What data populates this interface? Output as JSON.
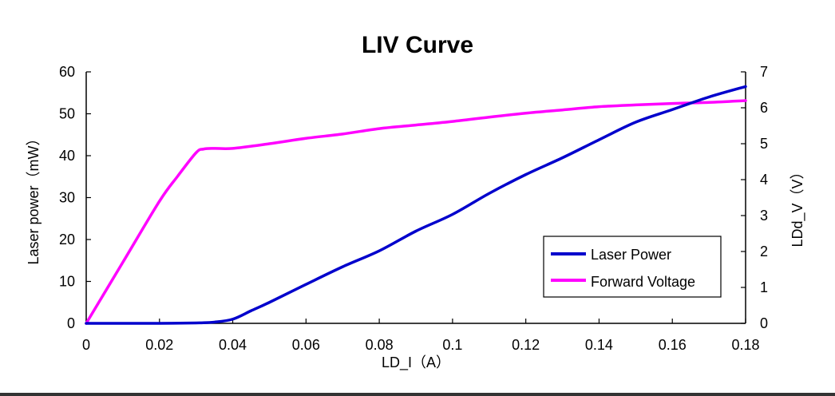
{
  "chart_data": {
    "type": "line",
    "title": "LIV Curve",
    "xlabel": "LD_I（A）",
    "ylabel_left": "Laser power（mW）",
    "ylabel_right": "LDd_V（V）",
    "xlim": [
      0,
      0.18
    ],
    "ylim_left": [
      0,
      60
    ],
    "ylim_right": [
      0,
      7
    ],
    "x_ticks": [
      "0",
      "0.02",
      "0.04",
      "0.06",
      "0.08",
      "0.1",
      "0.12",
      "0.14",
      "0.16",
      "0.18"
    ],
    "y_left_ticks": [
      "0",
      "10",
      "20",
      "30",
      "40",
      "50",
      "60"
    ],
    "y_right_ticks": [
      "0",
      "1",
      "2",
      "3",
      "4",
      "5",
      "6",
      "7"
    ],
    "grid": false,
    "legend_position": "bottom-right",
    "series": [
      {
        "name": "Laser Power",
        "axis": "left",
        "color": "#0000CC",
        "x": [
          0,
          0.01,
          0.02,
          0.03,
          0.035,
          0.04,
          0.045,
          0.05,
          0.06,
          0.07,
          0.08,
          0.09,
          0.1,
          0.11,
          0.12,
          0.13,
          0.14,
          0.15,
          0.16,
          0.17,
          0.18
        ],
        "values": [
          0,
          0,
          0,
          0.1,
          0.3,
          1.0,
          3.0,
          5.0,
          9.3,
          13.5,
          17.3,
          22.0,
          26.0,
          31.0,
          35.5,
          39.5,
          43.8,
          48.0,
          51.0,
          54.0,
          56.5
        ]
      },
      {
        "name": "Forward Voltage",
        "axis": "right",
        "color": "#FF00FF",
        "x": [
          0,
          0.01,
          0.02,
          0.025,
          0.03,
          0.032,
          0.035,
          0.04,
          0.05,
          0.06,
          0.07,
          0.08,
          0.09,
          0.1,
          0.11,
          0.12,
          0.13,
          0.14,
          0.15,
          0.16,
          0.17,
          0.18
        ],
        "values": [
          0,
          1.7,
          3.4,
          4.1,
          4.75,
          4.85,
          4.87,
          4.87,
          5.0,
          5.15,
          5.27,
          5.42,
          5.52,
          5.62,
          5.74,
          5.85,
          5.94,
          6.03,
          6.08,
          6.12,
          6.15,
          6.2
        ]
      }
    ]
  }
}
